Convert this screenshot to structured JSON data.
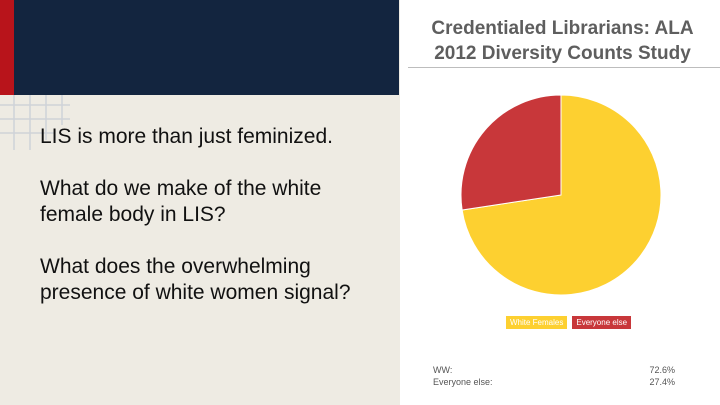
{
  "slide": {
    "bullets": [
      "LIS is more than just feminized.",
      "What do we make of the white female body in LIS?",
      "What does the overwhelming presence of white women signal?"
    ]
  },
  "colors": {
    "accent_red": "#b8141b",
    "navy": "#13253f",
    "slice_white_females": "#fdd030",
    "slice_everyone_else": "#c8373a"
  },
  "chart_data": {
    "type": "pie",
    "title": "Credentialed Librarians: ALA 2012 Diversity Counts Study",
    "categories": [
      "White Females",
      "Everyone else"
    ],
    "values": [
      72.6,
      27.4
    ],
    "colors": [
      "#fdd030",
      "#c8373a"
    ],
    "legend": "bottom",
    "stats": [
      {
        "label": "WW:",
        "value": "72.6%"
      },
      {
        "label": "Everyone else:",
        "value": "27.4%"
      }
    ]
  }
}
